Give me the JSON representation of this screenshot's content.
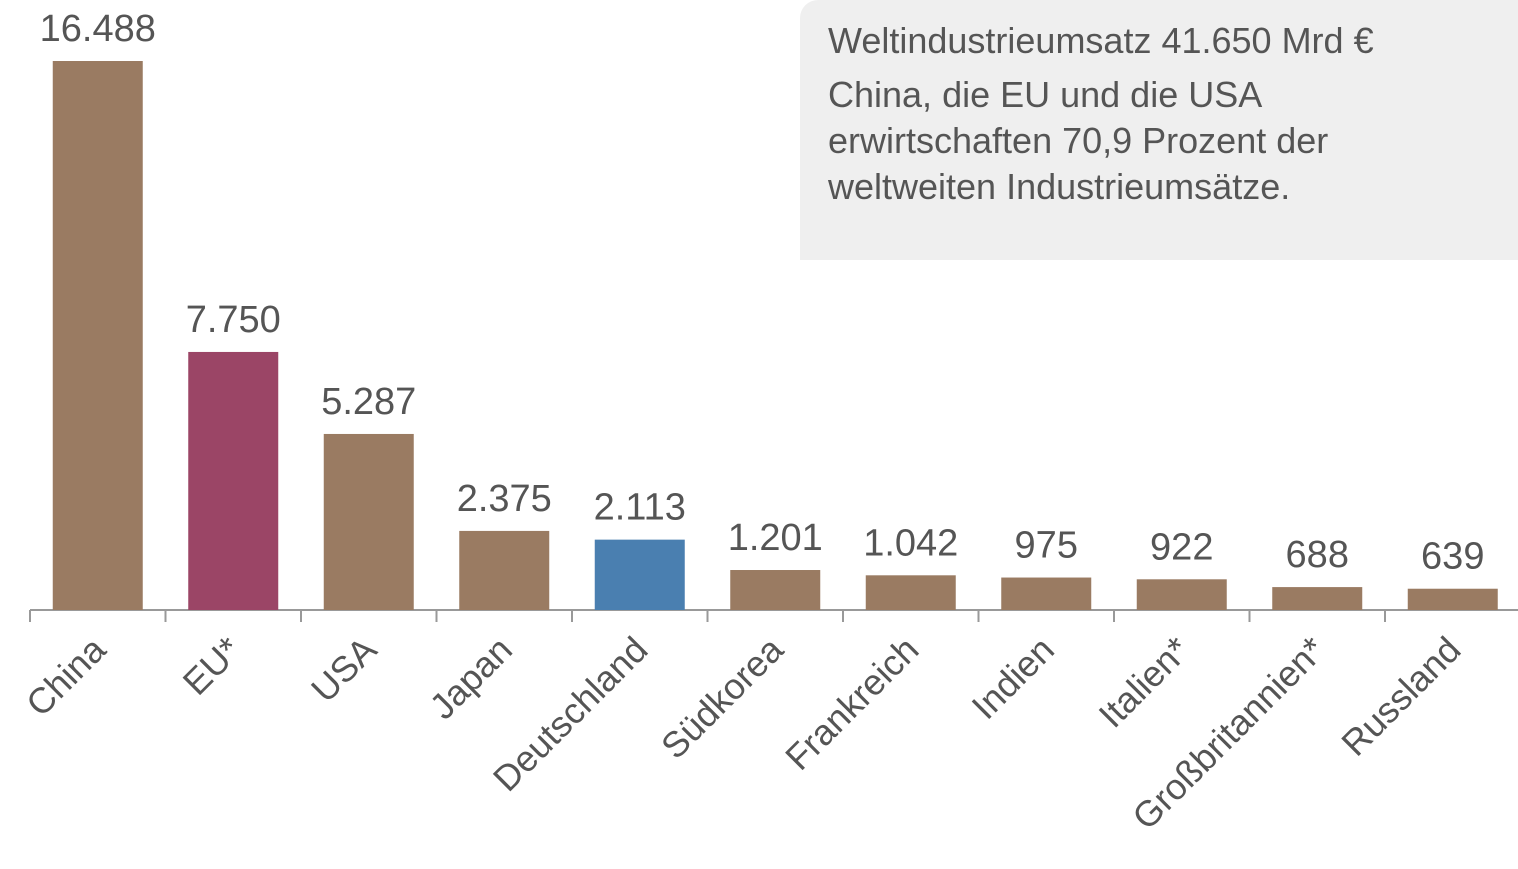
{
  "chart_data": {
    "type": "bar",
    "categories": [
      "China",
      "EU*",
      "USA",
      "Japan",
      "Deutschland",
      "Südkorea",
      "Frankreich",
      "Indien",
      "Italien*",
      "Großbritannien*",
      "Russland"
    ],
    "values": [
      16488,
      7750,
      5287,
      2375,
      2113,
      1201,
      1042,
      975,
      922,
      688,
      639
    ],
    "value_labels": [
      "16.488",
      "7.750",
      "5.287",
      "2.375",
      "2.113",
      "1.201",
      "1.042",
      "975",
      "922",
      "688",
      "639"
    ],
    "colors": [
      "#9a7b62",
      "#9b4566",
      "#9a7b62",
      "#9a7b62",
      "#4a7fb0",
      "#9a7b62",
      "#9a7b62",
      "#9a7b62",
      "#9a7b62",
      "#9a7b62",
      "#9a7b62"
    ],
    "annotations": [
      "Weltindustrieumsatz 41.650 Mrd €",
      "China, die EU und die USA erwirtschaften 70,9 Prozent der weltweiten Industrieumsätze."
    ]
  }
}
